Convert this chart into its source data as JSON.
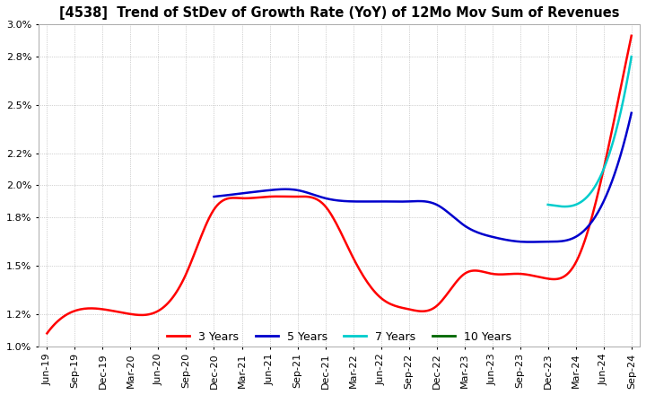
{
  "title": "[4538]  Trend of StDev of Growth Rate (YoY) of 12Mo Mov Sum of Revenues",
  "title_fontsize": 10.5,
  "ylim": [
    1.0,
    3.0
  ],
  "yticks": [
    1.0,
    1.2,
    1.5,
    1.8,
    2.0,
    2.2,
    2.5,
    2.8,
    3.0
  ],
  "background_color": "#ffffff",
  "grid_color": "#aaaaaa",
  "series": {
    "3 Years": {
      "color": "#ff0000",
      "values": [
        1.08,
        1.22,
        1.23,
        1.2,
        1.22,
        1.45,
        1.85,
        1.92,
        1.93,
        1.93,
        1.87,
        1.55,
        1.3,
        1.23,
        1.25,
        1.45,
        1.45,
        1.45,
        1.42,
        1.52,
        2.1,
        2.93
      ]
    },
    "5 Years": {
      "color": "#0000cc",
      "values": [
        null,
        null,
        null,
        null,
        null,
        null,
        1.93,
        1.95,
        1.97,
        1.97,
        1.92,
        1.9,
        1.9,
        1.9,
        1.88,
        1.75,
        1.68,
        1.65,
        1.65,
        1.68,
        1.9,
        2.45
      ]
    },
    "7 Years": {
      "color": "#00cccc",
      "values": [
        null,
        null,
        null,
        null,
        null,
        null,
        null,
        null,
        null,
        null,
        null,
        null,
        null,
        null,
        null,
        null,
        null,
        null,
        1.88,
        1.88,
        2.1,
        2.8
      ]
    },
    "10 Years": {
      "color": "#006600",
      "values": [
        null,
        null,
        null,
        null,
        null,
        null,
        null,
        null,
        null,
        null,
        null,
        null,
        null,
        null,
        null,
        null,
        null,
        null,
        null,
        null,
        null,
        null
      ]
    }
  },
  "x_labels": [
    "Jun-19",
    "Sep-19",
    "Dec-19",
    "Mar-20",
    "Jun-20",
    "Sep-20",
    "Dec-20",
    "Mar-21",
    "Jun-21",
    "Sep-21",
    "Dec-21",
    "Mar-22",
    "Jun-22",
    "Sep-22",
    "Dec-22",
    "Mar-23",
    "Jun-23",
    "Sep-23",
    "Dec-23",
    "Mar-24",
    "Jun-24",
    "Sep-24"
  ],
  "legend_entries": [
    "3 Years",
    "5 Years",
    "7 Years",
    "10 Years"
  ],
  "legend_colors": [
    "#ff0000",
    "#0000cc",
    "#00cccc",
    "#006600"
  ]
}
